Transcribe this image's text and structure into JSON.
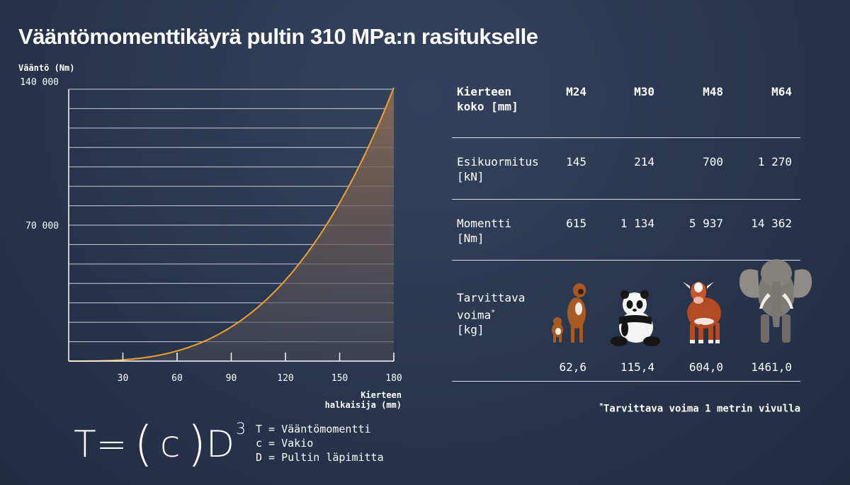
{
  "title": "Vääntömomenttikäyrä pultin 310 MPa:n rasitukselle",
  "chart_data": {
    "type": "area",
    "ylabel": "Vääntö (Nm)",
    "xlabel_line1": "Kierteen",
    "xlabel_line2": "halkaisija (mm)",
    "ylim": [
      0,
      140000
    ],
    "xlim": [
      0,
      180
    ],
    "y_ticks": [
      {
        "value": 140000,
        "label": "140 000"
      },
      {
        "value": 70000,
        "label": "70 000"
      }
    ],
    "x_ticks": [
      {
        "value": 30,
        "label": "30"
      },
      {
        "value": 60,
        "label": "60"
      },
      {
        "value": 90,
        "label": "90"
      },
      {
        "value": 120,
        "label": "120"
      },
      {
        "value": 150,
        "label": "150"
      },
      {
        "value": 180,
        "label": "180"
      }
    ],
    "gridlines": [
      10000,
      20000,
      30000,
      40000,
      50000,
      60000,
      70000,
      80000,
      90000,
      100000,
      110000,
      120000,
      130000
    ],
    "grid": true,
    "curve": "cubic",
    "x": [
      0,
      30,
      60,
      90,
      120,
      150,
      180
    ],
    "y": [
      0,
      650,
      5200,
      17600,
      41700,
      81500,
      140800
    ],
    "line_color": "#f0a030"
  },
  "formula": {
    "t": "T",
    "eq": "=",
    "open": "(",
    "c": "c",
    "close": ")",
    "d": "D",
    "exp": "3"
  },
  "legend": [
    "T = Vääntömomentti",
    "c = Vakio",
    "D = Pultin läpimitta"
  ],
  "table": {
    "header": {
      "label_line1": "Kierteen",
      "label_line2": "koko [mm]",
      "cols": [
        "M24",
        "M30",
        "M48",
        "M64"
      ]
    },
    "preload": {
      "label_line1": "Esikuormitus",
      "label_line2": "[kN]",
      "values": [
        "145",
        "214",
        "700",
        "1 270"
      ]
    },
    "moment": {
      "label_line1": "Momentti",
      "label_line2": "[Nm]",
      "values": [
        "615",
        "1 134",
        "5 937",
        "14 362"
      ]
    },
    "force": {
      "label_line1": "Tarvittava",
      "label_line2": "voima",
      "label_star": "*",
      "label_line3": "[kg]",
      "values": [
        "62,6",
        "115,4",
        "604,0",
        "1461,0"
      ]
    },
    "animals": [
      "dog-icon",
      "panda-icon",
      "cow-icon",
      "elephant-icon"
    ]
  },
  "footnote": {
    "star": "*",
    "text": "Tarvittava voima 1 metrin vivulla"
  }
}
